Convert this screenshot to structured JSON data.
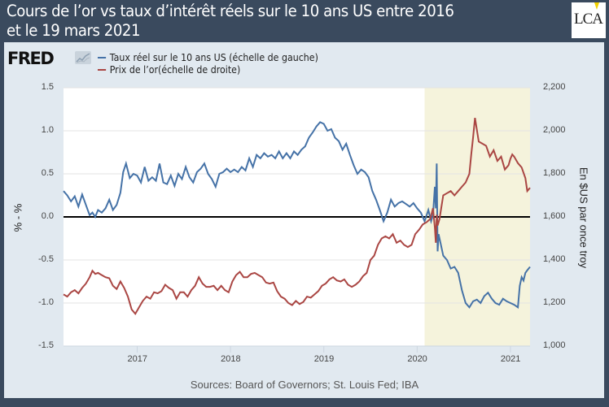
{
  "header": {
    "title_line1": "Cours de l’or vs taux d’intérêt réels sur le 10 ans US entre 2016",
    "title_line2": "et le 19 mars 2021",
    "logo_text": "LCA",
    "fred_brand": "FRED"
  },
  "colors": {
    "header_bg": "#3a4a5e",
    "panel_bg": "#e1e9f0",
    "plot_bg": "#ffffff",
    "shade": "#f5f3dc",
    "blue_series": "#4572a7",
    "red_series": "#aa4643",
    "zero_line": "#000000"
  },
  "source_note": "Sources: Board of Governors; St. Louis Fed; IBA",
  "chart_data": {
    "type": "line",
    "title": "Cours de l’or vs taux d’intérêt réels sur le 10 ans US entre 2016 et le 19 mars 2021",
    "xlabel": "",
    "ylabel_left": "% - %",
    "ylabel_right": "En $US par once troy",
    "xlim": [
      2016.21,
      2021.21
    ],
    "ylim_left": [
      -1.5,
      1.5
    ],
    "ylim_right": [
      1000,
      2200
    ],
    "x_ticks": [
      2017,
      2018,
      2019,
      2020,
      2021
    ],
    "x_tick_labels": [
      "2017",
      "2018",
      "2019",
      "2020",
      "2021"
    ],
    "y_ticks_left": [
      1.5,
      1.0,
      0.5,
      0.0,
      -0.5,
      -1.0,
      -1.5
    ],
    "y_tick_labels_left": [
      "1.5",
      "1.0",
      "0.5",
      "0.0",
      "-0.5",
      "-1.0",
      "-1.5"
    ],
    "y_ticks_right": [
      2200,
      2000,
      1800,
      1600,
      1400,
      1200,
      1000
    ],
    "y_tick_labels_right": [
      "2,200",
      "2,000",
      "1,800",
      "1,600",
      "1,400",
      "1,200",
      "1,000"
    ],
    "grid": true,
    "zero_line": 0.0,
    "shaded_region": [
      2020.08,
      2021.21
    ],
    "legend_position": "top-left",
    "series": [
      {
        "name": "Taux réel sur le 10 ans US (échelle de gauche)",
        "axis": "left",
        "color": "#4572a7",
        "x": [
          2016.21,
          2016.25,
          2016.29,
          2016.33,
          2016.37,
          2016.41,
          2016.45,
          2016.49,
          2016.52,
          2016.55,
          2016.58,
          2016.62,
          2016.66,
          2016.7,
          2016.74,
          2016.78,
          2016.82,
          2016.85,
          2016.88,
          2016.92,
          2016.96,
          2017.0,
          2017.04,
          2017.08,
          2017.12,
          2017.16,
          2017.2,
          2017.24,
          2017.28,
          2017.32,
          2017.36,
          2017.4,
          2017.44,
          2017.48,
          2017.52,
          2017.56,
          2017.6,
          2017.64,
          2017.68,
          2017.72,
          2017.76,
          2017.8,
          2017.84,
          2017.88,
          2017.92,
          2017.96,
          2018.0,
          2018.04,
          2018.08,
          2018.12,
          2018.16,
          2018.2,
          2018.24,
          2018.28,
          2018.32,
          2018.36,
          2018.4,
          2018.44,
          2018.48,
          2018.52,
          2018.56,
          2018.6,
          2018.64,
          2018.68,
          2018.72,
          2018.76,
          2018.8,
          2018.84,
          2018.88,
          2018.92,
          2018.96,
          2019.0,
          2019.04,
          2019.08,
          2019.12,
          2019.16,
          2019.2,
          2019.24,
          2019.28,
          2019.32,
          2019.36,
          2019.4,
          2019.44,
          2019.48,
          2019.52,
          2019.56,
          2019.6,
          2019.64,
          2019.68,
          2019.72,
          2019.76,
          2019.8,
          2019.84,
          2019.88,
          2019.92,
          2019.96,
          2020.0,
          2020.04,
          2020.08,
          2020.12,
          2020.15,
          2020.17,
          2020.19,
          2020.2,
          2020.21,
          2020.22,
          2020.23,
          2020.25,
          2020.28,
          2020.32,
          2020.36,
          2020.4,
          2020.44,
          2020.48,
          2020.52,
          2020.56,
          2020.6,
          2020.64,
          2020.68,
          2020.72,
          2020.76,
          2020.8,
          2020.84,
          2020.88,
          2020.92,
          2020.96,
          2021.0,
          2021.04,
          2021.08,
          2021.1,
          2021.12,
          2021.14,
          2021.16,
          2021.18,
          2021.21
        ],
        "values": [
          0.3,
          0.25,
          0.18,
          0.24,
          0.12,
          0.26,
          0.14,
          0.02,
          0.05,
          0.0,
          0.08,
          0.05,
          0.1,
          0.2,
          0.08,
          0.14,
          0.28,
          0.52,
          0.62,
          0.45,
          0.5,
          0.48,
          0.4,
          0.58,
          0.42,
          0.46,
          0.42,
          0.62,
          0.4,
          0.38,
          0.48,
          0.36,
          0.5,
          0.44,
          0.58,
          0.46,
          0.4,
          0.52,
          0.56,
          0.62,
          0.5,
          0.44,
          0.35,
          0.5,
          0.52,
          0.56,
          0.52,
          0.55,
          0.52,
          0.58,
          0.54,
          0.68,
          0.58,
          0.72,
          0.68,
          0.74,
          0.7,
          0.72,
          0.68,
          0.76,
          0.68,
          0.74,
          0.68,
          0.76,
          0.72,
          0.78,
          0.82,
          0.92,
          0.98,
          1.05,
          1.1,
          1.08,
          1.0,
          1.02,
          0.92,
          0.88,
          0.78,
          0.85,
          0.72,
          0.6,
          0.5,
          0.55,
          0.52,
          0.46,
          0.3,
          0.2,
          0.08,
          -0.05,
          0.05,
          0.2,
          0.12,
          0.16,
          0.18,
          0.15,
          0.12,
          0.16,
          0.1,
          0.05,
          -0.05,
          0.08,
          -0.05,
          0.02,
          0.35,
          0.1,
          0.62,
          -0.4,
          -0.2,
          -0.3,
          -0.45,
          -0.5,
          -0.6,
          -0.58,
          -0.65,
          -0.85,
          -1.0,
          -1.05,
          -0.98,
          -0.96,
          -1.0,
          -0.92,
          -0.88,
          -0.95,
          -1.0,
          -1.02,
          -0.95,
          -0.98,
          -1.0,
          -1.02,
          -1.05,
          -0.8,
          -0.7,
          -0.74,
          -0.65,
          -0.62,
          -0.58
        ]
      },
      {
        "name": "Prix de l’or(échelle de droite)",
        "axis": "right",
        "color": "#aa4643",
        "x": [
          2016.21,
          2016.25,
          2016.29,
          2016.33,
          2016.37,
          2016.41,
          2016.45,
          2016.49,
          2016.52,
          2016.55,
          2016.58,
          2016.62,
          2016.66,
          2016.7,
          2016.74,
          2016.78,
          2016.82,
          2016.86,
          2016.9,
          2016.94,
          2016.98,
          2017.02,
          2017.06,
          2017.1,
          2017.14,
          2017.18,
          2017.22,
          2017.26,
          2017.3,
          2017.34,
          2017.38,
          2017.42,
          2017.46,
          2017.5,
          2017.54,
          2017.58,
          2017.62,
          2017.66,
          2017.7,
          2017.74,
          2017.78,
          2017.82,
          2017.86,
          2017.9,
          2017.94,
          2017.98,
          2018.02,
          2018.06,
          2018.1,
          2018.14,
          2018.18,
          2018.22,
          2018.26,
          2018.3,
          2018.34,
          2018.38,
          2018.42,
          2018.46,
          2018.5,
          2018.54,
          2018.58,
          2018.62,
          2018.66,
          2018.7,
          2018.74,
          2018.78,
          2018.82,
          2018.86,
          2018.9,
          2018.94,
          2018.98,
          2019.02,
          2019.06,
          2019.1,
          2019.14,
          2019.18,
          2019.22,
          2019.26,
          2019.3,
          2019.34,
          2019.38,
          2019.42,
          2019.46,
          2019.5,
          2019.54,
          2019.58,
          2019.62,
          2019.66,
          2019.7,
          2019.74,
          2019.78,
          2019.82,
          2019.86,
          2019.9,
          2019.94,
          2019.98,
          2020.02,
          2020.06,
          2020.1,
          2020.14,
          2020.17,
          2020.19,
          2020.2,
          2020.21,
          2020.22,
          2020.24,
          2020.28,
          2020.32,
          2020.36,
          2020.4,
          2020.44,
          2020.48,
          2020.52,
          2020.56,
          2020.58,
          2020.6,
          2020.62,
          2020.66,
          2020.7,
          2020.74,
          2020.78,
          2020.82,
          2020.86,
          2020.9,
          2020.94,
          2020.98,
          2021.0,
          2021.02,
          2021.04,
          2021.08,
          2021.12,
          2021.16,
          2021.18,
          2021.21
        ],
        "values": [
          1240,
          1230,
          1250,
          1260,
          1245,
          1270,
          1290,
          1320,
          1350,
          1335,
          1340,
          1330,
          1320,
          1315,
          1280,
          1265,
          1300,
          1270,
          1230,
          1170,
          1150,
          1180,
          1210,
          1230,
          1220,
          1250,
          1245,
          1255,
          1285,
          1270,
          1260,
          1220,
          1250,
          1250,
          1230,
          1260,
          1280,
          1320,
          1290,
          1275,
          1275,
          1280,
          1260,
          1280,
          1260,
          1250,
          1300,
          1330,
          1345,
          1320,
          1320,
          1335,
          1340,
          1330,
          1320,
          1295,
          1290,
          1295,
          1255,
          1230,
          1220,
          1200,
          1190,
          1210,
          1195,
          1205,
          1230,
          1225,
          1240,
          1255,
          1280,
          1290,
          1310,
          1320,
          1305,
          1300,
          1310,
          1285,
          1275,
          1285,
          1300,
          1325,
          1340,
          1400,
          1420,
          1470,
          1500,
          1510,
          1500,
          1520,
          1480,
          1490,
          1470,
          1460,
          1470,
          1520,
          1540,
          1565,
          1575,
          1590,
          1640,
          1550,
          1480,
          1610,
          1560,
          1590,
          1700,
          1710,
          1720,
          1700,
          1720,
          1740,
          1760,
          1800,
          1890,
          1970,
          2060,
          1950,
          1940,
          1930,
          1880,
          1910,
          1860,
          1880,
          1820,
          1840,
          1870,
          1890,
          1880,
          1850,
          1830,
          1780,
          1720,
          1735
        ]
      }
    ]
  }
}
